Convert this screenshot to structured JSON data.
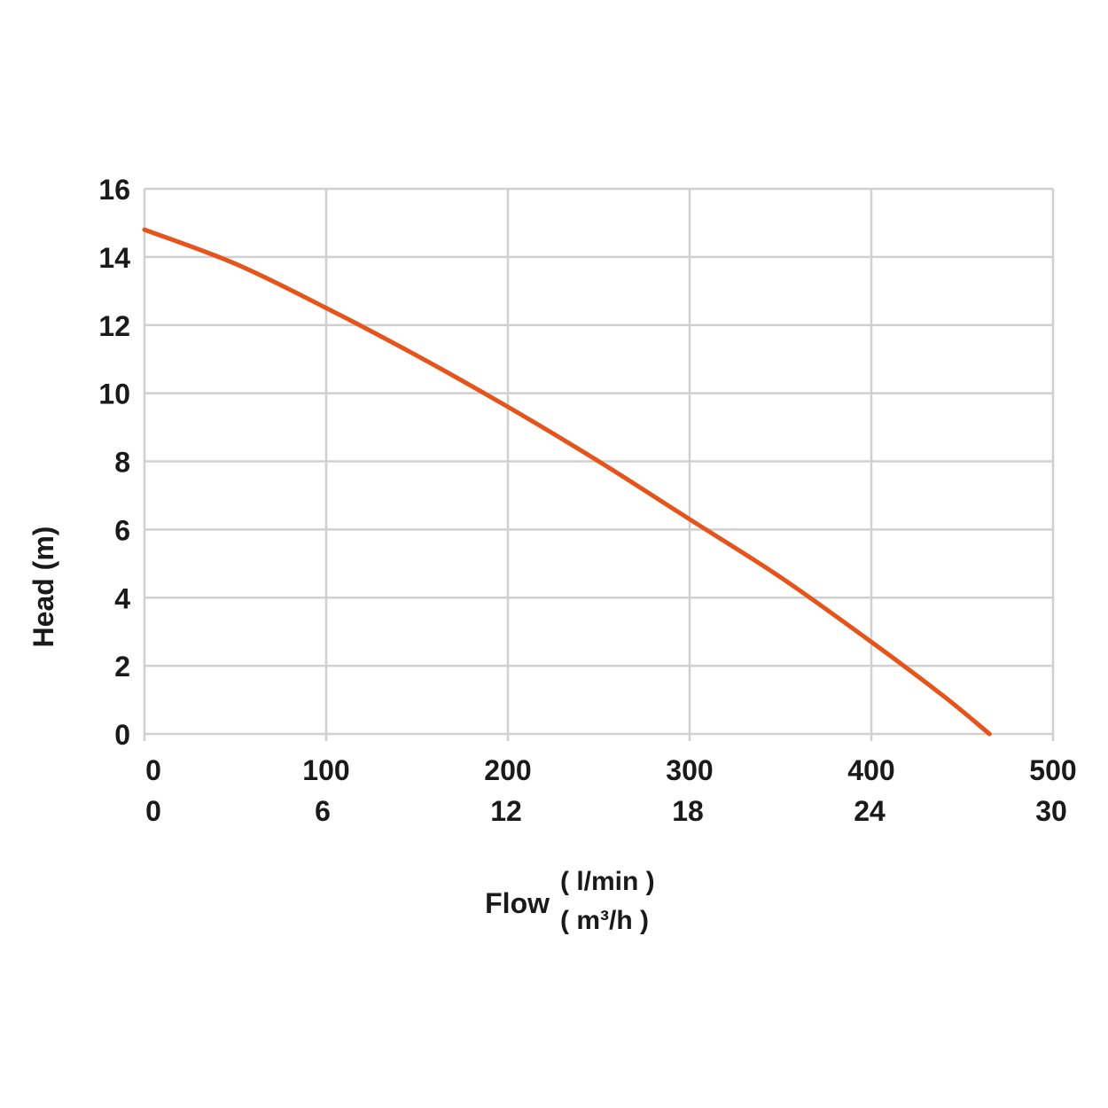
{
  "chart_data": {
    "type": "line",
    "ylabel": "Head (m)",
    "xlabel": "Flow",
    "xunits": [
      "( l/min )",
      "( m³/h )"
    ],
    "x_ticks_primary": [
      "0",
      "100",
      "200",
      "300",
      "400",
      "500"
    ],
    "x_ticks_secondary": [
      "0",
      "6",
      "12",
      "18",
      "24",
      "30"
    ],
    "y_ticks": [
      "0",
      "2",
      "4",
      "6",
      "8",
      "10",
      "12",
      "14",
      "16"
    ],
    "xlim": [
      0,
      500
    ],
    "ylim": [
      0,
      16
    ],
    "grid": true,
    "colors": {
      "series": "#e5541b",
      "grid": "#d0d0d0",
      "text": "#1a1a1a"
    },
    "series": [
      {
        "x": [
          0,
          50,
          100,
          150,
          200,
          250,
          300,
          350,
          400,
          440,
          465
        ],
        "values": [
          14.8,
          13.8,
          12.5,
          11.1,
          9.6,
          8.0,
          6.3,
          4.6,
          2.7,
          1.1,
          0.0
        ]
      }
    ]
  }
}
